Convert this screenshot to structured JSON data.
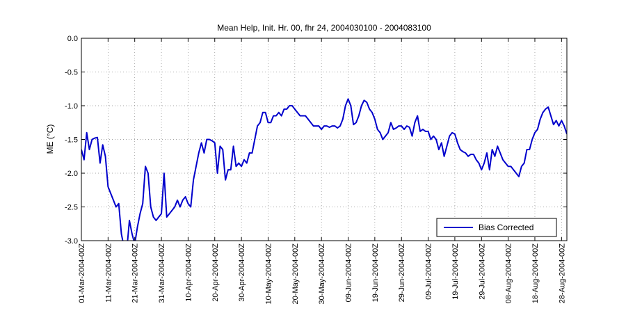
{
  "chart_data": {
    "type": "line",
    "title": "Mean Help, Init. Hr. 00, fhr 24, 2004030100 - 2004083100",
    "y_label": "ME (°C)",
    "legend_position": "lower right",
    "grid": true,
    "xlim": [
      "2004-03-01",
      "2004-08-30"
    ],
    "ylim": [
      -3,
      0
    ],
    "yticks": [
      {
        "value": 0,
        "label": "0.0"
      },
      -0.5,
      {
        "value": -1,
        "label": "-1.0"
      },
      -1.5,
      {
        "value": -2,
        "label": "-2.0"
      },
      -2.5,
      {
        "value": -3,
        "label": "-3.0"
      }
    ],
    "xticks": [
      {
        "value": "2004-03-01",
        "label": "01-Mar-2004-00Z"
      },
      {
        "value": "2004-03-11",
        "label": "11-Mar-2004-00Z"
      },
      {
        "value": "2004-03-21",
        "label": "21-Mar-2004-00Z"
      },
      {
        "value": "2004-03-31",
        "label": "31-Mar-2004-00Z"
      },
      {
        "value": "2004-04-10",
        "label": "10-Apr-2004-00Z"
      },
      {
        "value": "2004-04-20",
        "label": "20-Apr-2004-00Z"
      },
      {
        "value": "2004-04-30",
        "label": "30-Apr-2004-00Z"
      },
      {
        "value": "2004-05-10",
        "label": "10-May-2004-00Z"
      },
      {
        "value": "2004-05-20",
        "label": "20-May-2004-00Z"
      },
      {
        "value": "2004-05-30",
        "label": "30-May-2004-00Z"
      },
      {
        "value": "2004-06-09",
        "label": "09-Jun-2004-00Z"
      },
      {
        "value": "2004-06-19",
        "label": "19-Jun-2004-00Z"
      },
      {
        "value": "2004-06-29",
        "label": "29-Jun-2004-00Z"
      },
      {
        "value": "2004-07-09",
        "label": "09-Jul-2004-00Z"
      },
      {
        "value": "2004-07-19",
        "label": "19-Jul-2004-00Z"
      },
      {
        "value": "2004-07-29",
        "label": "29-Jul-2004-00Z"
      },
      {
        "value": "2004-08-08",
        "label": "08-Aug-2004-00Z"
      },
      {
        "value": "2004-08-18",
        "label": "18-Aug-2004-00Z"
      },
      {
        "value": "2004-08-28",
        "label": "28-Aug-2004-00Z"
      }
    ],
    "x": [
      "2004-03-01",
      "2004-03-02",
      "2004-03-03",
      "2004-03-04",
      "2004-03-05",
      "2004-03-06",
      "2004-03-07",
      "2004-03-08",
      "2004-03-09",
      "2004-03-10",
      "2004-03-11",
      "2004-03-12",
      "2004-03-13",
      "2004-03-14",
      "2004-03-15",
      "2004-03-16",
      "2004-03-17",
      "2004-03-18",
      "2004-03-19",
      "2004-03-20",
      "2004-03-21",
      "2004-03-22",
      "2004-03-23",
      "2004-03-24",
      "2004-03-25",
      "2004-03-26",
      "2004-03-27",
      "2004-03-28",
      "2004-03-29",
      "2004-03-30",
      "2004-03-31",
      "2004-04-01",
      "2004-04-02",
      "2004-04-03",
      "2004-04-04",
      "2004-04-05",
      "2004-04-06",
      "2004-04-07",
      "2004-04-08",
      "2004-04-09",
      "2004-04-10",
      "2004-04-11",
      "2004-04-12",
      "2004-04-13",
      "2004-04-14",
      "2004-04-15",
      "2004-04-16",
      "2004-04-17",
      "2004-04-18",
      "2004-04-19",
      "2004-04-20",
      "2004-04-21",
      "2004-04-22",
      "2004-04-23",
      "2004-04-24",
      "2004-04-25",
      "2004-04-26",
      "2004-04-27",
      "2004-04-28",
      "2004-04-29",
      "2004-04-30",
      "2004-05-01",
      "2004-05-02",
      "2004-05-03",
      "2004-05-04",
      "2004-05-05",
      "2004-05-06",
      "2004-05-07",
      "2004-05-08",
      "2004-05-09",
      "2004-05-10",
      "2004-05-11",
      "2004-05-12",
      "2004-05-13",
      "2004-05-14",
      "2004-05-15",
      "2004-05-16",
      "2004-05-17",
      "2004-05-18",
      "2004-05-19",
      "2004-05-20",
      "2004-05-21",
      "2004-05-22",
      "2004-05-23",
      "2004-05-24",
      "2004-05-25",
      "2004-05-26",
      "2004-05-27",
      "2004-05-28",
      "2004-05-29",
      "2004-05-30",
      "2004-05-31",
      "2004-06-01",
      "2004-06-02",
      "2004-06-03",
      "2004-06-04",
      "2004-06-05",
      "2004-06-06",
      "2004-06-07",
      "2004-06-08",
      "2004-06-09",
      "2004-06-10",
      "2004-06-11",
      "2004-06-12",
      "2004-06-13",
      "2004-06-14",
      "2004-06-15",
      "2004-06-16",
      "2004-06-17",
      "2004-06-18",
      "2004-06-19",
      "2004-06-20",
      "2004-06-21",
      "2004-06-22",
      "2004-06-23",
      "2004-06-24",
      "2004-06-25",
      "2004-06-26",
      "2004-06-27",
      "2004-06-28",
      "2004-06-29",
      "2004-06-30",
      "2004-07-01",
      "2004-07-02",
      "2004-07-03",
      "2004-07-04",
      "2004-07-05",
      "2004-07-06",
      "2004-07-07",
      "2004-07-08",
      "2004-07-09",
      "2004-07-10",
      "2004-07-11",
      "2004-07-12",
      "2004-07-13",
      "2004-07-14",
      "2004-07-15",
      "2004-07-16",
      "2004-07-17",
      "2004-07-18",
      "2004-07-19",
      "2004-07-20",
      "2004-07-21",
      "2004-07-22",
      "2004-07-23",
      "2004-07-24",
      "2004-07-25",
      "2004-07-26",
      "2004-07-27",
      "2004-07-28",
      "2004-07-29",
      "2004-07-30",
      "2004-07-31",
      "2004-08-01",
      "2004-08-02",
      "2004-08-03",
      "2004-08-04",
      "2004-08-05",
      "2004-08-06",
      "2004-08-07",
      "2004-08-08",
      "2004-08-09",
      "2004-08-10",
      "2004-08-11",
      "2004-08-12",
      "2004-08-13",
      "2004-08-14",
      "2004-08-15",
      "2004-08-16",
      "2004-08-17",
      "2004-08-18",
      "2004-08-19",
      "2004-08-20",
      "2004-08-21",
      "2004-08-22",
      "2004-08-23",
      "2004-08-24",
      "2004-08-25",
      "2004-08-26",
      "2004-08-27",
      "2004-08-28",
      "2004-08-29",
      "2004-08-30"
    ],
    "series": [
      {
        "name": "Bias Corrected",
        "color": "#0000cc",
        "values": [
          -1.65,
          -1.8,
          -1.4,
          -1.65,
          -1.5,
          -1.48,
          -1.47,
          -1.85,
          -1.58,
          -1.75,
          -2.2,
          -2.3,
          -2.4,
          -2.5,
          -2.45,
          -2.9,
          -3.1,
          -3.15,
          -2.7,
          -2.9,
          -3.05,
          -2.8,
          -2.6,
          -2.45,
          -1.9,
          -2.0,
          -2.5,
          -2.65,
          -2.7,
          -2.65,
          -2.6,
          -2.0,
          -2.65,
          -2.6,
          -2.55,
          -2.5,
          -2.4,
          -2.5,
          -2.4,
          -2.35,
          -2.45,
          -2.5,
          -2.1,
          -1.9,
          -1.7,
          -1.55,
          -1.7,
          -1.5,
          -1.5,
          -1.52,
          -1.55,
          -2.0,
          -1.6,
          -1.65,
          -2.1,
          -1.95,
          -1.95,
          -1.6,
          -1.9,
          -1.85,
          -1.9,
          -1.8,
          -1.85,
          -1.7,
          -1.7,
          -1.5,
          -1.3,
          -1.25,
          -1.1,
          -1.1,
          -1.25,
          -1.25,
          -1.15,
          -1.15,
          -1.1,
          -1.15,
          -1.05,
          -1.05,
          -1.0,
          -1.0,
          -1.05,
          -1.1,
          -1.15,
          -1.15,
          -1.15,
          -1.2,
          -1.25,
          -1.3,
          -1.3,
          -1.3,
          -1.35,
          -1.3,
          -1.3,
          -1.32,
          -1.3,
          -1.3,
          -1.33,
          -1.3,
          -1.2,
          -1.0,
          -0.9,
          -1.0,
          -1.28,
          -1.25,
          -1.15,
          -1.0,
          -0.92,
          -0.95,
          -1.05,
          -1.1,
          -1.2,
          -1.35,
          -1.4,
          -1.5,
          -1.45,
          -1.4,
          -1.25,
          -1.35,
          -1.33,
          -1.3,
          -1.3,
          -1.35,
          -1.3,
          -1.32,
          -1.45,
          -1.25,
          -1.15,
          -1.38,
          -1.35,
          -1.38,
          -1.38,
          -1.5,
          -1.45,
          -1.5,
          -1.65,
          -1.55,
          -1.75,
          -1.6,
          -1.45,
          -1.4,
          -1.42,
          -1.55,
          -1.65,
          -1.68,
          -1.7,
          -1.75,
          -1.72,
          -1.72,
          -1.8,
          -1.85,
          -1.95,
          -1.85,
          -1.7,
          -1.95,
          -1.65,
          -1.75,
          -1.6,
          -1.7,
          -1.8,
          -1.85,
          -1.9,
          -1.9,
          -1.95,
          -2.0,
          -2.05,
          -1.9,
          -1.85,
          -1.65,
          -1.65,
          -1.5,
          -1.4,
          -1.35,
          -1.2,
          -1.1,
          -1.05,
          -1.02,
          -1.15,
          -1.28,
          -1.22,
          -1.3,
          -1.22,
          -1.3,
          -1.42
        ]
      }
    ]
  }
}
